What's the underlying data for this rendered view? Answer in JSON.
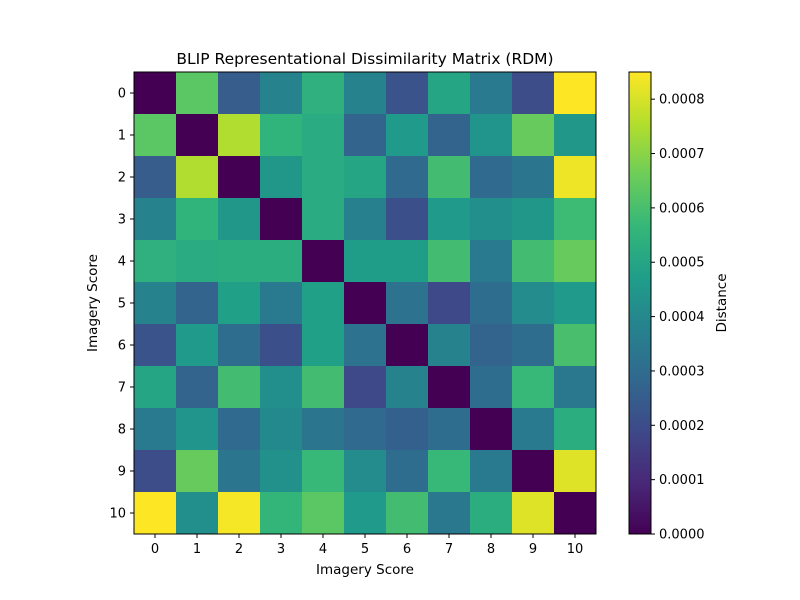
{
  "chart_data": {
    "type": "heatmap",
    "title": "BLIP Representational Dissimilarity Matrix (RDM)",
    "xlabel": "Imagery Score",
    "ylabel": "Imagery Score",
    "x_ticks": [
      "0",
      "1",
      "2",
      "3",
      "4",
      "5",
      "6",
      "7",
      "8",
      "9",
      "10"
    ],
    "y_ticks": [
      "0",
      "1",
      "2",
      "3",
      "4",
      "5",
      "6",
      "7",
      "8",
      "9",
      "10"
    ],
    "colorbar": {
      "label": "Distance",
      "colormap": "viridis",
      "range": [
        0,
        0.00085
      ],
      "ticks": [
        "0.0000",
        "0.0001",
        "0.0002",
        "0.0003",
        "0.0004",
        "0.0005",
        "0.0006",
        "0.0007",
        "0.0008"
      ]
    },
    "matrix": [
      [
        0.0,
        0.00063,
        0.00025,
        0.00038,
        0.00054,
        0.00038,
        0.00022,
        0.0005,
        0.00035,
        0.0002,
        0.00085
      ],
      [
        0.00063,
        0.0,
        0.00075,
        0.00055,
        0.00052,
        0.00027,
        0.00046,
        0.00027,
        0.00044,
        0.00065,
        0.00045
      ],
      [
        0.00025,
        0.00075,
        0.0,
        0.00045,
        0.00052,
        0.0005,
        0.00029,
        0.00059,
        0.00029,
        0.00033,
        0.00083
      ],
      [
        0.00038,
        0.00055,
        0.00045,
        0.0,
        0.00052,
        0.00037,
        0.00021,
        0.00046,
        0.00042,
        0.00045,
        0.00058
      ],
      [
        0.00054,
        0.00052,
        0.00053,
        0.00053,
        0.0,
        0.00047,
        0.00047,
        0.00059,
        0.00035,
        0.00059,
        0.00065
      ],
      [
        0.00038,
        0.00027,
        0.00048,
        0.00035,
        0.00048,
        0.0,
        0.00032,
        0.00019,
        0.0003,
        0.00041,
        0.00046
      ],
      [
        0.00022,
        0.00046,
        0.0003,
        0.00021,
        0.00048,
        0.00032,
        0.0,
        0.00038,
        0.00027,
        0.0003,
        0.0006
      ],
      [
        0.0005,
        0.00027,
        0.00059,
        0.00042,
        0.00059,
        0.00019,
        0.00038,
        0.0,
        0.0003,
        0.00057,
        0.00034
      ],
      [
        0.00035,
        0.00044,
        0.00029,
        0.0004,
        0.00033,
        0.00029,
        0.00026,
        0.0003,
        0.0,
        0.00035,
        0.00053
      ],
      [
        0.0002,
        0.00065,
        0.00033,
        0.00043,
        0.00057,
        0.00041,
        0.0003,
        0.00057,
        0.00035,
        0.0,
        0.00081
      ],
      [
        0.00085,
        0.00042,
        0.00084,
        0.00056,
        0.00063,
        0.00046,
        0.00059,
        0.00034,
        0.00053,
        0.00081,
        0.0
      ]
    ]
  }
}
